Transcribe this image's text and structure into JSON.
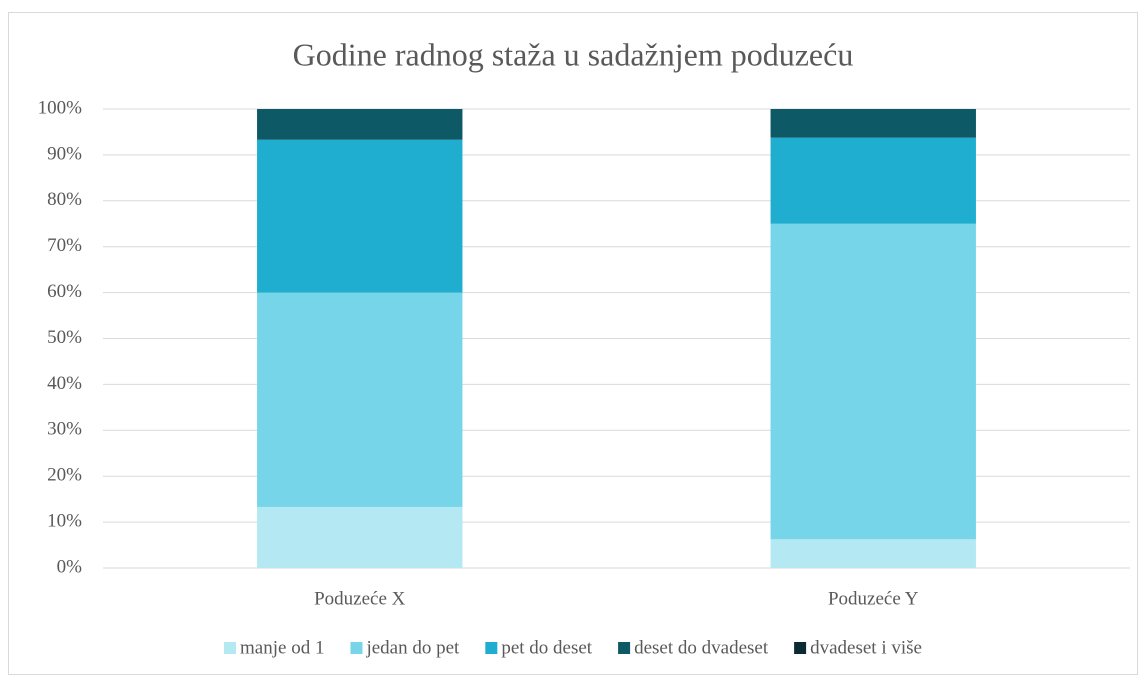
{
  "chart_data": {
    "type": "stacked_bar",
    "title": "Godine radnog staža u sadažnjem poduzeću",
    "categories": [
      "Poduzeće X",
      "Poduzeće Y"
    ],
    "series": [
      {
        "name": "manje od 1",
        "color": "#b4e9f3",
        "values": [
          13.3,
          6.25
        ]
      },
      {
        "name": "jedan do pet",
        "color": "#77d5ea",
        "values": [
          46.7,
          68.75
        ]
      },
      {
        "name": "pet do deset",
        "color": "#1fadd0",
        "values": [
          33.3,
          18.75
        ]
      },
      {
        "name": "deset do dvadeset",
        "color": "#0e5966",
        "values": [
          6.7,
          6.25
        ]
      },
      {
        "name": "dvadeset i više",
        "color": "#0b2a33",
        "values": [
          0,
          0
        ]
      }
    ],
    "ylim": [
      0,
      100
    ],
    "yticks": [
      {
        "value": 0,
        "label": "0%"
      },
      {
        "value": 10,
        "label": "10%"
      },
      {
        "value": 20,
        "label": "20%"
      },
      {
        "value": 30,
        "label": "30%"
      },
      {
        "value": 40,
        "label": "40%"
      },
      {
        "value": 50,
        "label": "50%"
      },
      {
        "value": 60,
        "label": "60%"
      },
      {
        "value": 70,
        "label": "70%"
      },
      {
        "value": 80,
        "label": "80%"
      },
      {
        "value": 90,
        "label": "90%"
      },
      {
        "value": 100,
        "label": "100%"
      }
    ],
    "grid": true,
    "legend": "bottom"
  }
}
